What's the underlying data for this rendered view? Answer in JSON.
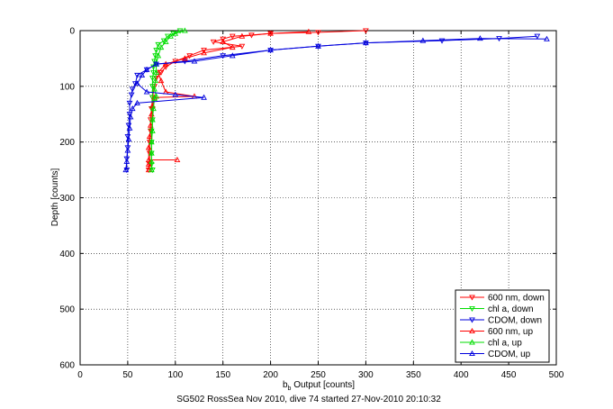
{
  "chart_data": {
    "type": "scatter",
    "title": "",
    "caption": "SG502 RossSea Nov 2010, dive 74 started 27-Nov-2010 20:10:32",
    "xlabel_main": "b",
    "xlabel_sub": "b",
    "xlabel_rest": " Output [counts]",
    "ylabel": "Depth [counts]",
    "xlim": [
      0,
      500
    ],
    "ylim": [
      600,
      0
    ],
    "y_reversed": true,
    "grid": true,
    "legend_position": "bottom-right",
    "x_ticks": [
      "0",
      "50",
      "100",
      "150",
      "200",
      "250",
      "300",
      "350",
      "400",
      "450",
      "500"
    ],
    "y_ticks": [
      "0",
      "100",
      "200",
      "300",
      "400",
      "500",
      "600"
    ],
    "series": [
      {
        "name": "600 nm, down",
        "color": "#ff0000",
        "marker": "triangle-down",
        "line": true,
        "points": [
          [
            300,
            0
          ],
          [
            250,
            3
          ],
          [
            200,
            5
          ],
          [
            180,
            8
          ],
          [
            160,
            10
          ],
          [
            150,
            15
          ],
          [
            140,
            20
          ],
          [
            170,
            28
          ],
          [
            130,
            35
          ],
          [
            115,
            45
          ],
          [
            100,
            55
          ],
          [
            90,
            65
          ],
          [
            85,
            75
          ],
          [
            80,
            85
          ],
          [
            78,
            100
          ],
          [
            76,
            120
          ],
          [
            75,
            140
          ],
          [
            74,
            160
          ],
          [
            74,
            180
          ],
          [
            73,
            200
          ],
          [
            73,
            220
          ],
          [
            73,
            240
          ],
          [
            72,
            250
          ]
        ]
      },
      {
        "name": "chl a, down",
        "color": "#00dd00",
        "marker": "triangle-down",
        "line": true,
        "points": [
          [
            105,
            0
          ],
          [
            98,
            5
          ],
          [
            92,
            10
          ],
          [
            88,
            18
          ],
          [
            82,
            25
          ],
          [
            80,
            35
          ],
          [
            79,
            45
          ],
          [
            78,
            55
          ],
          [
            77,
            65
          ],
          [
            77,
            75
          ],
          [
            76,
            85
          ],
          [
            76,
            100
          ],
          [
            76,
            120
          ],
          [
            76,
            140
          ],
          [
            76,
            160
          ],
          [
            75,
            180
          ],
          [
            75,
            200
          ],
          [
            75,
            220
          ],
          [
            75,
            240
          ],
          [
            76,
            250
          ]
        ]
      },
      {
        "name": "CDOM, down",
        "color": "#0000dd",
        "marker": "triangle-down",
        "line": true,
        "points": [
          [
            480,
            10
          ],
          [
            440,
            14
          ],
          [
            380,
            18
          ],
          [
            300,
            22
          ],
          [
            250,
            28
          ],
          [
            200,
            35
          ],
          [
            150,
            45
          ],
          [
            110,
            55
          ],
          [
            80,
            60
          ],
          [
            70,
            70
          ],
          [
            60,
            80
          ],
          [
            58,
            95
          ],
          [
            55,
            105
          ],
          [
            54,
            115
          ],
          [
            52,
            130
          ],
          [
            52,
            150
          ],
          [
            51,
            170
          ],
          [
            50,
            190
          ],
          [
            50,
            210
          ],
          [
            49,
            230
          ],
          [
            49,
            250
          ]
        ]
      },
      {
        "name": "600 nm, up",
        "color": "#ff0000",
        "marker": "triangle-up",
        "line": true,
        "points": [
          [
            102,
            232
          ],
          [
            72,
            232
          ],
          [
            72,
            240
          ],
          [
            72,
            250
          ],
          [
            72,
            210
          ],
          [
            73,
            190
          ],
          [
            74,
            170
          ],
          [
            75,
            150
          ],
          [
            76,
            135
          ],
          [
            78,
            120
          ],
          [
            120,
            118
          ],
          [
            90,
            110
          ],
          [
            85,
            90
          ],
          [
            82,
            75
          ],
          [
            90,
            60
          ],
          [
            110,
            50
          ],
          [
            130,
            40
          ],
          [
            160,
            30
          ],
          [
            150,
            20
          ],
          [
            170,
            10
          ],
          [
            200,
            5
          ],
          [
            240,
            2
          ]
        ]
      },
      {
        "name": "chl a, up",
        "color": "#00dd00",
        "marker": "triangle-up",
        "line": true,
        "points": [
          [
            75,
            250
          ],
          [
            75,
            235
          ],
          [
            75,
            220
          ],
          [
            75,
            200
          ],
          [
            76,
            180
          ],
          [
            76,
            160
          ],
          [
            77,
            140
          ],
          [
            78,
            122
          ],
          [
            80,
            118
          ],
          [
            78,
            105
          ],
          [
            79,
            90
          ],
          [
            80,
            75
          ],
          [
            80,
            60
          ],
          [
            82,
            45
          ],
          [
            85,
            30
          ],
          [
            90,
            20
          ],
          [
            95,
            10
          ],
          [
            100,
            5
          ],
          [
            110,
            0
          ]
        ]
      },
      {
        "name": "CDOM, up",
        "color": "#0000dd",
        "marker": "triangle-up",
        "line": true,
        "points": [
          [
            48,
            250
          ],
          [
            49,
            235
          ],
          [
            50,
            215
          ],
          [
            51,
            195
          ],
          [
            52,
            175
          ],
          [
            53,
            155
          ],
          [
            55,
            140
          ],
          [
            60,
            130
          ],
          [
            130,
            120
          ],
          [
            100,
            115
          ],
          [
            70,
            110
          ],
          [
            60,
            95
          ],
          [
            65,
            80
          ],
          [
            70,
            70
          ],
          [
            80,
            60
          ],
          [
            120,
            55
          ],
          [
            160,
            45
          ],
          [
            200,
            35
          ],
          [
            250,
            28
          ],
          [
            300,
            22
          ],
          [
            360,
            18
          ],
          [
            420,
            14
          ],
          [
            490,
            15
          ]
        ]
      }
    ]
  }
}
